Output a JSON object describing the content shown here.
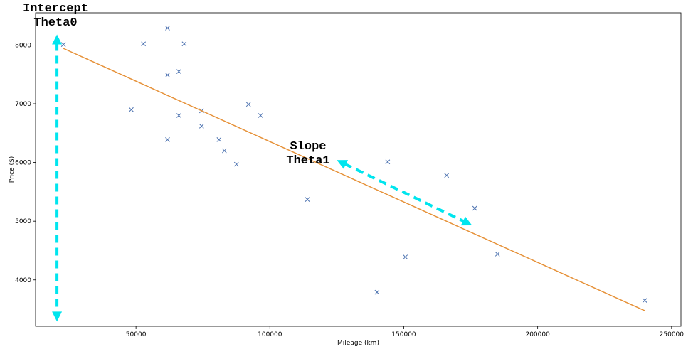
{
  "chart_data": {
    "type": "scatter",
    "xlabel": "Mileage (km)",
    "ylabel": "Price ($)",
    "xlim": [
      12500,
      253500
    ],
    "ylim": [
      3210,
      8550
    ],
    "x_ticks": [
      50000,
      100000,
      150000,
      200000,
      250000
    ],
    "x_tick_labels": [
      "50000",
      "100000",
      "150000",
      "200000",
      "250000"
    ],
    "y_ticks": [
      4000,
      5000,
      6000,
      7000,
      8000
    ],
    "y_tick_labels": [
      "4000",
      "5000",
      "6000",
      "7000",
      "8000"
    ],
    "grid": false,
    "colors": {
      "points": "#4c72b0",
      "line": "#e69138",
      "arrows": "#00e5ee"
    },
    "points": [
      {
        "x": 22899,
        "y": 8010
      },
      {
        "x": 48235,
        "y": 6900
      },
      {
        "x": 52800,
        "y": 8020
      },
      {
        "x": 61789,
        "y": 8290
      },
      {
        "x": 61789,
        "y": 7490
      },
      {
        "x": 61789,
        "y": 6390
      },
      {
        "x": 66000,
        "y": 7550
      },
      {
        "x": 66000,
        "y": 6800
      },
      {
        "x": 68000,
        "y": 8020
      },
      {
        "x": 74500,
        "y": 6880
      },
      {
        "x": 74500,
        "y": 6620
      },
      {
        "x": 81000,
        "y": 6390
      },
      {
        "x": 83000,
        "y": 6200
      },
      {
        "x": 87500,
        "y": 5970
      },
      {
        "x": 92000,
        "y": 6990
      },
      {
        "x": 96500,
        "y": 6800
      },
      {
        "x": 114000,
        "y": 5370
      },
      {
        "x": 140000,
        "y": 3790
      },
      {
        "x": 144000,
        "y": 6010
      },
      {
        "x": 150600,
        "y": 4390
      },
      {
        "x": 166000,
        "y": 5780
      },
      {
        "x": 176500,
        "y": 5220
      },
      {
        "x": 185000,
        "y": 4440
      },
      {
        "x": 240000,
        "y": 3650
      }
    ],
    "regression_line": {
      "x": [
        22899,
        240000
      ],
      "y": [
        7943,
        3475
      ]
    },
    "annotations": {
      "intercept": {
        "lines": [
          "Intercept",
          "Theta0"
        ],
        "arrow_x": 20500,
        "arrow_y": [
          8180,
          3290
        ]
      },
      "slope": {
        "lines": [
          "Slope",
          "Theta1"
        ],
        "arrow_from": [
          125000,
          6040
        ],
        "arrow_to": [
          175500,
          4930
        ]
      }
    }
  }
}
